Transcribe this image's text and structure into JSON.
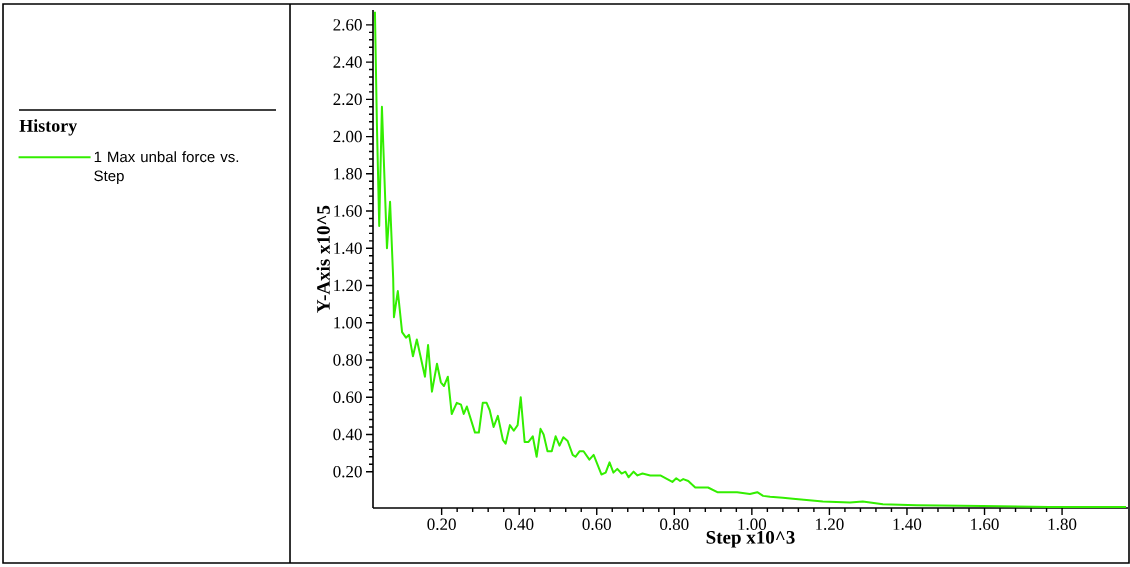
{
  "chart_data": {
    "type": "line",
    "xlabel": "Step x10^3",
    "ylabel": "Y-Axis x10^5",
    "legend_title": "History",
    "legend": "left",
    "xlim": [
      0.023,
      1.97
    ],
    "ylim": [
      0.005,
      2.68
    ],
    "xticks": [
      {
        "value": 0.2,
        "label": "0.20"
      },
      {
        "value": 0.4,
        "label": "0.40"
      },
      {
        "value": 0.6,
        "label": "0.60"
      },
      {
        "value": 0.8,
        "label": "0.80"
      },
      {
        "value": 1.0,
        "label": "1.00"
      },
      {
        "value": 1.2,
        "label": "1.20"
      },
      {
        "value": 1.4,
        "label": "1.40"
      },
      {
        "value": 1.6,
        "label": "1.60"
      },
      {
        "value": 1.8,
        "label": "1.80"
      }
    ],
    "yticks": [
      {
        "value": 0.2,
        "label": "0.20"
      },
      {
        "value": 0.4,
        "label": "0.40"
      },
      {
        "value": 0.6,
        "label": "0.60"
      },
      {
        "value": 0.8,
        "label": "0.80"
      },
      {
        "value": 1.0,
        "label": "1.00"
      },
      {
        "value": 1.2,
        "label": "1.20"
      },
      {
        "value": 1.4,
        "label": "1.40"
      },
      {
        "value": 1.6,
        "label": "1.60"
      },
      {
        "value": 1.8,
        "label": "1.80"
      },
      {
        "value": 2.0,
        "label": "2.00"
      },
      {
        "value": 2.2,
        "label": "2.20"
      },
      {
        "value": 2.4,
        "label": "2.40"
      },
      {
        "value": 2.6,
        "label": "2.60"
      }
    ],
    "series": [
      {
        "name": "1 Max unbal force vs. Step",
        "color": "#33ee00",
        "x": [
          0.028,
          0.033,
          0.039,
          0.046,
          0.059,
          0.067,
          0.075,
          0.077,
          0.087,
          0.098,
          0.108,
          0.116,
          0.126,
          0.136,
          0.157,
          0.165,
          0.175,
          0.188,
          0.198,
          0.206,
          0.216,
          0.226,
          0.239,
          0.25,
          0.257,
          0.265,
          0.286,
          0.296,
          0.306,
          0.316,
          0.324,
          0.334,
          0.345,
          0.358,
          0.365,
          0.376,
          0.386,
          0.396,
          0.404,
          0.414,
          0.424,
          0.435,
          0.445,
          0.455,
          0.463,
          0.473,
          0.484,
          0.494,
          0.504,
          0.514,
          0.525,
          0.538,
          0.545,
          0.556,
          0.566,
          0.581,
          0.592,
          0.612,
          0.623,
          0.633,
          0.643,
          0.653,
          0.664,
          0.674,
          0.682,
          0.695,
          0.705,
          0.718,
          0.738,
          0.764,
          0.795,
          0.805,
          0.815,
          0.823,
          0.836,
          0.854,
          0.887,
          0.911,
          0.962,
          0.995,
          1.014,
          1.029,
          1.047,
          1.08,
          1.106,
          1.183,
          1.253,
          1.286,
          1.338,
          1.425,
          1.595,
          1.767,
          1.965
        ],
        "values": [
          2.67,
          2.07,
          1.52,
          2.16,
          1.4,
          1.65,
          1.24,
          1.03,
          1.17,
          0.95,
          0.92,
          0.935,
          0.82,
          0.91,
          0.71,
          0.88,
          0.63,
          0.78,
          0.68,
          0.66,
          0.71,
          0.51,
          0.57,
          0.56,
          0.51,
          0.55,
          0.41,
          0.41,
          0.57,
          0.57,
          0.53,
          0.44,
          0.5,
          0.37,
          0.35,
          0.45,
          0.42,
          0.45,
          0.6,
          0.36,
          0.36,
          0.39,
          0.28,
          0.43,
          0.4,
          0.31,
          0.31,
          0.39,
          0.34,
          0.385,
          0.365,
          0.29,
          0.28,
          0.31,
          0.31,
          0.265,
          0.29,
          0.185,
          0.195,
          0.25,
          0.195,
          0.215,
          0.19,
          0.2,
          0.17,
          0.2,
          0.18,
          0.19,
          0.18,
          0.18,
          0.145,
          0.165,
          0.15,
          0.16,
          0.15,
          0.115,
          0.115,
          0.09,
          0.09,
          0.08,
          0.09,
          0.07,
          0.065,
          0.06,
          0.055,
          0.04,
          0.035,
          0.04,
          0.025,
          0.02,
          0.015,
          0.01,
          0.01
        ]
      }
    ]
  }
}
